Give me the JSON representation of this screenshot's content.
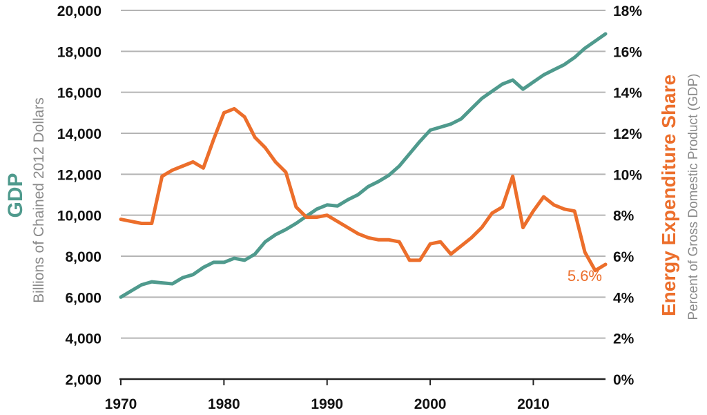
{
  "chart_data": {
    "type": "line",
    "title": "",
    "x": [
      1970,
      1971,
      1972,
      1973,
      1974,
      1975,
      1976,
      1977,
      1978,
      1979,
      1980,
      1981,
      1982,
      1983,
      1984,
      1985,
      1986,
      1987,
      1988,
      1989,
      1990,
      1991,
      1992,
      1993,
      1994,
      1995,
      1996,
      1997,
      1998,
      1999,
      2000,
      2001,
      2002,
      2003,
      2004,
      2005,
      2006,
      2007,
      2008,
      2009,
      2010,
      2011,
      2012,
      2013,
      2014,
      2015,
      2016,
      2017
    ],
    "xticks": [
      "1970",
      "1980",
      "1990",
      "2000",
      "2010"
    ],
    "xlim": [
      1970,
      2017
    ],
    "left_axis": {
      "title": "GDP",
      "subtitle": "Billions of Chained 2012 Dollars",
      "ticks": [
        "2,000",
        "4,000",
        "6,000",
        "8,000",
        "10,000",
        "12,000",
        "14,000",
        "16,000",
        "18,000",
        "20,000"
      ],
      "ylim": [
        2000,
        20000
      ],
      "color": "#4f9a8d"
    },
    "right_axis": {
      "title": "Energy Expenditure Share",
      "subtitle": "Percent of Gross Domestic Product (GDP)",
      "ticks": [
        "0%",
        "2%",
        "4%",
        "6%",
        "8%",
        "10%",
        "12%",
        "14%",
        "16%",
        "18%"
      ],
      "ylim": [
        0,
        18
      ],
      "color": "#ec6e2b"
    },
    "series": [
      {
        "name": "GDP",
        "axis": "left",
        "color": "#4f9a8d",
        "values": [
          6000,
          6300,
          6600,
          6750,
          6700,
          6650,
          6950,
          7100,
          7450,
          7700,
          7700,
          7900,
          7800,
          8100,
          8700,
          9050,
          9300,
          9600,
          9950,
          10300,
          10500,
          10450,
          10750,
          11000,
          11400,
          11650,
          11950,
          12400,
          13000,
          13600,
          14150,
          14300,
          14450,
          14700,
          15200,
          15700,
          16050,
          16400,
          16600,
          16150,
          16500,
          16850,
          17100,
          17350,
          17700,
          18150,
          18500,
          18850
        ]
      },
      {
        "name": "Energy Expenditure Share",
        "axis": "right",
        "color": "#ec6e2b",
        "values": [
          7.8,
          7.7,
          7.6,
          7.6,
          9.9,
          10.2,
          10.4,
          10.6,
          10.3,
          11.7,
          13.0,
          13.2,
          12.8,
          11.8,
          11.3,
          10.6,
          10.1,
          8.4,
          7.9,
          7.9,
          8.0,
          7.7,
          7.4,
          7.1,
          6.9,
          6.8,
          6.8,
          6.7,
          5.8,
          5.8,
          6.6,
          6.7,
          6.1,
          6.5,
          6.9,
          7.4,
          8.1,
          8.4,
          9.9,
          7.4,
          8.2,
          8.9,
          8.5,
          8.3,
          8.2,
          6.2,
          5.3,
          5.6
        ]
      }
    ],
    "annotations": [
      {
        "text": "5.6%",
        "series": "Energy Expenditure Share",
        "x": 2017,
        "value": 5.6
      }
    ],
    "grid": true
  }
}
